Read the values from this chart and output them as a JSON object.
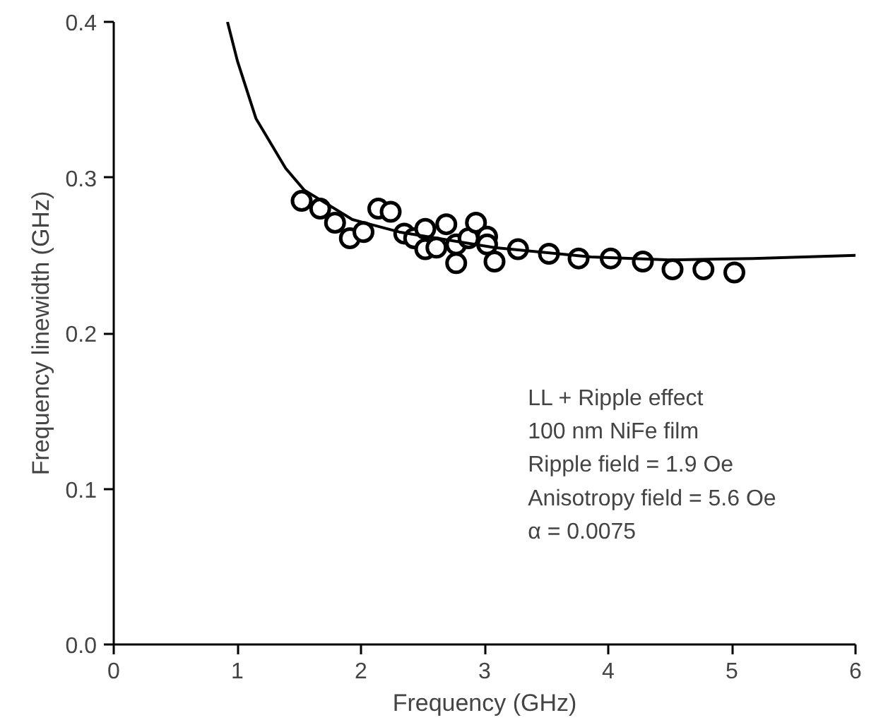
{
  "chart_data": {
    "type": "scatter",
    "xlabel": "Frequency (GHz)",
    "ylabel": "Frequency linewidth (GHz)",
    "xlim": [
      0,
      6
    ],
    "ylim": [
      0,
      0.4
    ],
    "xticks": [
      0,
      1,
      2,
      3,
      4,
      5,
      6
    ],
    "yticks": [
      {
        "value": 0,
        "label": "0.0"
      },
      0.1,
      0.2,
      0.3,
      0.4
    ],
    "grid": false,
    "series": [
      {
        "marker": "circle",
        "color": "#000000",
        "x": [
          1.52,
          1.67,
          1.79,
          1.91,
          2.02,
          2.14,
          2.24,
          2.35,
          2.43,
          2.52,
          2.52,
          2.61,
          2.69,
          2.77,
          2.77,
          2.87,
          2.93,
          3.02,
          3.02,
          3.08,
          3.27,
          3.52,
          3.76,
          4.02,
          4.28,
          4.52,
          4.77,
          5.02
        ],
        "values": [
          0.285,
          0.28,
          0.271,
          0.261,
          0.265,
          0.28,
          0.278,
          0.264,
          0.261,
          0.267,
          0.254,
          0.255,
          0.27,
          0.257,
          0.245,
          0.261,
          0.271,
          0.262,
          0.257,
          0.246,
          0.254,
          0.251,
          0.248,
          0.248,
          0.246,
          0.241,
          0.241,
          0.239
        ]
      },
      {
        "type": "line",
        "marker": "none",
        "color": "#000000",
        "line_style": "solid",
        "x": [
          0.92,
          1.0,
          1.15,
          1.39,
          1.54,
          1.93,
          2.31,
          3.08,
          3.86,
          4.5,
          5.17,
          6.0
        ],
        "values": [
          0.4,
          0.375,
          0.338,
          0.306,
          0.292,
          0.273,
          0.265,
          0.255,
          0.249,
          0.247,
          0.248,
          0.25
        ]
      }
    ],
    "annotations": [
      "LL + Ripple effect",
      "100 nm NiFe film",
      "Ripple field =  1.9 Oe",
      "Anisotropy field = 5.6 Oe",
      "α = 0.0075"
    ]
  }
}
